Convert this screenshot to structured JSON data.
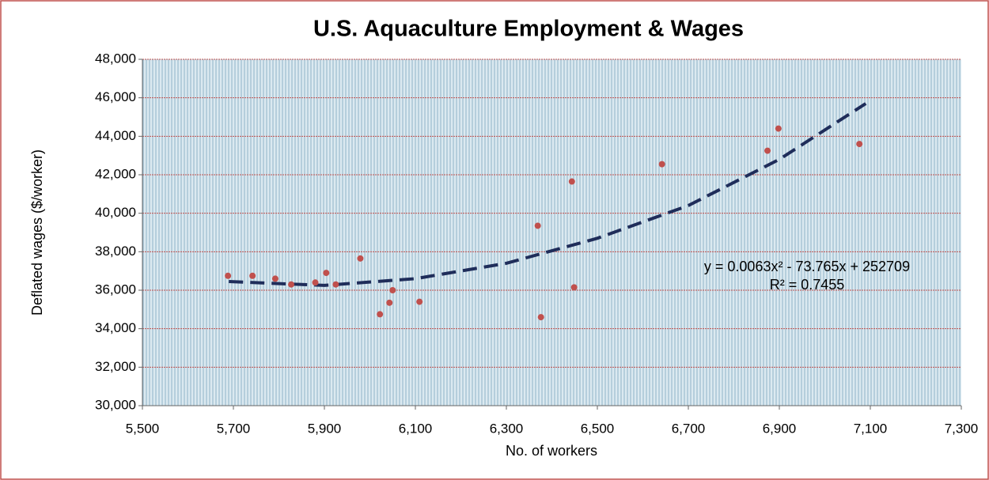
{
  "chart_data": {
    "type": "scatter",
    "title": "U.S. Aquaculture Employment & Wages",
    "x_label": "No. of workers",
    "y_label": "Deflated wages ($/worker)",
    "annotations": [
      "y = 0.0063x² - 73.765x + 252709",
      "R² = 0.7455"
    ],
    "series": [
      {
        "color": "#c0504d",
        "x": [
          5688,
          5742,
          5792,
          5827,
          5880,
          5904,
          5925,
          5979,
          6022,
          6043,
          6050,
          6109,
          6369,
          6376,
          6444,
          6449,
          6642,
          6874,
          6898,
          7076
        ],
        "values": [
          36750,
          36750,
          36600,
          36300,
          36400,
          36900,
          36300,
          37650,
          34750,
          35350,
          36000,
          35400,
          39350,
          34600,
          41650,
          36150,
          42550,
          43250,
          44400,
          43600
        ]
      }
    ],
    "trendline": {
      "color": "#1f2d5a",
      "x": [
        5690,
        5900,
        6100,
        6300,
        6500,
        6700,
        6900,
        7090
      ],
      "values": [
        36450,
        36250,
        36600,
        37400,
        38700,
        40400,
        42800,
        45700
      ]
    },
    "xlim": [
      5500,
      7300
    ],
    "xticks": [
      {
        "value": 5500,
        "label": "5,500"
      },
      {
        "value": 5700,
        "label": "5,700"
      },
      {
        "value": 5900,
        "label": "5,900"
      },
      {
        "value": 6100,
        "label": "6,100"
      },
      {
        "value": 6300,
        "label": "6,300"
      },
      {
        "value": 6500,
        "label": "6,500"
      },
      {
        "value": 6700,
        "label": "6,700"
      },
      {
        "value": 6900,
        "label": "6,900"
      },
      {
        "value": 7100,
        "label": "7,100"
      },
      {
        "value": 7300,
        "label": "7,300"
      }
    ],
    "ylim": [
      30000,
      48000
    ],
    "yticks": [
      {
        "value": 30000,
        "label": "30,000"
      },
      {
        "value": 32000,
        "label": "32,000"
      },
      {
        "value": 34000,
        "label": "34,000"
      },
      {
        "value": 36000,
        "label": "36,000"
      },
      {
        "value": 38000,
        "label": "38,000"
      },
      {
        "value": 40000,
        "label": "40,000"
      },
      {
        "value": 42000,
        "label": "42,000"
      },
      {
        "value": 44000,
        "label": "44,000"
      },
      {
        "value": 46000,
        "label": "46,000"
      },
      {
        "value": 48000,
        "label": "48,000"
      }
    ],
    "grid": true
  }
}
